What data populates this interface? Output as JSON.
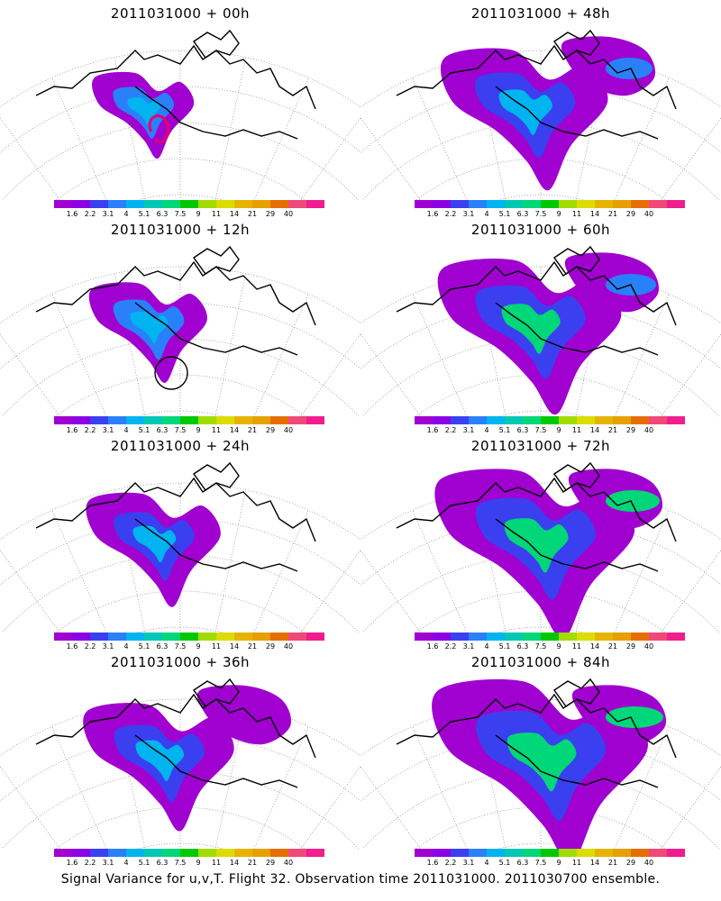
{
  "panels": [
    {
      "title": "2011031000 + 00h",
      "intensity": 0,
      "marker": "contour"
    },
    {
      "title": "2011031000 + 48h",
      "intensity": 4,
      "marker": "none"
    },
    {
      "title": "2011031000 + 12h",
      "intensity": 1,
      "marker": "circle"
    },
    {
      "title": "2011031000 + 60h",
      "intensity": 5,
      "marker": "none"
    },
    {
      "title": "2011031000 + 24h",
      "intensity": 2,
      "marker": "none"
    },
    {
      "title": "2011031000 + 72h",
      "intensity": 6,
      "marker": "none"
    },
    {
      "title": "2011031000 + 36h",
      "intensity": 3,
      "marker": "none"
    },
    {
      "title": "2011031000 + 84h",
      "intensity": 7,
      "marker": "none"
    }
  ],
  "colorbar": {
    "colors": [
      "#a000d0",
      "#8c00e6",
      "#3a40f0",
      "#2a80f8",
      "#00b4f0",
      "#00c8b4",
      "#00d778",
      "#00c800",
      "#a0dc00",
      "#dcdc00",
      "#e6b400",
      "#e6a000",
      "#e66e00",
      "#f04878",
      "#f01e8c"
    ],
    "labels": [
      "1.6",
      "2.2",
      "3.1",
      "4",
      "5.1",
      "6.3",
      "7.5",
      "9",
      "11",
      "14",
      "21",
      "29",
      "40"
    ]
  },
  "footer": "Signal Variance for u,v,T. Flight 32. Observation time 2011031000. 2011030700 ensemble."
}
